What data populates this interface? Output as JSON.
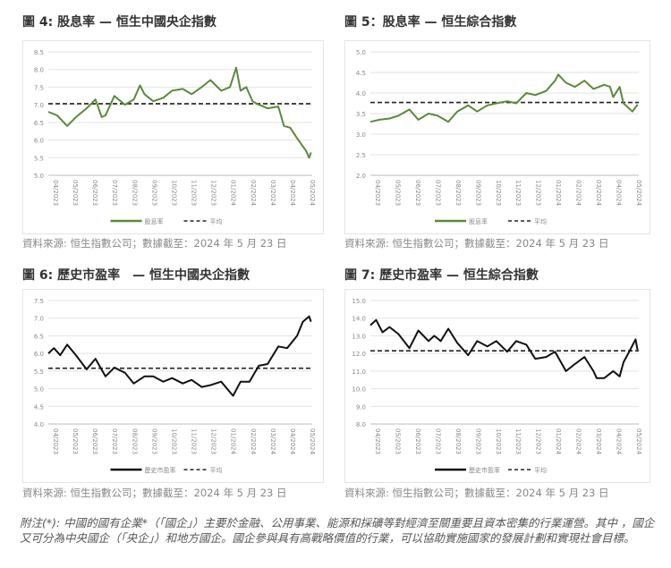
{
  "chart_data": [
    {
      "type": "line",
      "title": "圖 4: 股息率 — 恒生中國央企指數",
      "ylim": [
        5.0,
        8.5
      ],
      "yticks": [
        5.0,
        5.5,
        6.0,
        6.5,
        7.0,
        7.5,
        8.0,
        8.5
      ],
      "grid": true,
      "legend_placement": "bottom",
      "xtick_labels": [
        "04/2023",
        "05/2023",
        "06/2023",
        "07/2023",
        "08/2023",
        "09/2023",
        "10/2023",
        "11/2023",
        "12/2023",
        "01/2024",
        "02/2024",
        "03/2024",
        "04/2024",
        "05/2024"
      ],
      "series": [
        {
          "name": "股息率",
          "color": "#5a8a3a",
          "style": "solid",
          "x": [
            "2023-04-01",
            "2023-04-15",
            "2023-05-01",
            "2023-05-15",
            "2023-06-01",
            "2023-06-15",
            "2023-06-25",
            "2023-07-01",
            "2023-07-15",
            "2023-08-01",
            "2023-08-15",
            "2023-08-25",
            "2023-09-01",
            "2023-09-15",
            "2023-10-01",
            "2023-10-15",
            "2023-11-01",
            "2023-11-15",
            "2023-12-01",
            "2023-12-15",
            "2024-01-01",
            "2024-01-15",
            "2024-01-25",
            "2024-02-01",
            "2024-02-10",
            "2024-02-20",
            "2024-03-01",
            "2024-03-15",
            "2024-04-01",
            "2024-04-10",
            "2024-04-20",
            "2024-05-01",
            "2024-05-15",
            "2024-05-20",
            "2024-05-23"
          ],
          "y": [
            6.8,
            6.7,
            6.4,
            6.65,
            6.9,
            7.15,
            6.65,
            6.7,
            7.25,
            7.0,
            7.15,
            7.55,
            7.3,
            7.1,
            7.2,
            7.4,
            7.45,
            7.3,
            7.5,
            7.7,
            7.4,
            7.5,
            8.05,
            7.4,
            7.5,
            7.1,
            7.0,
            6.9,
            6.95,
            6.4,
            6.35,
            6.05,
            5.7,
            5.5,
            5.65
          ]
        },
        {
          "name": "平均",
          "color": "#222222",
          "style": "dashed",
          "value": 7.03
        }
      ],
      "source": "資料來源: 恒生指數公司；數據截至：2024 年 5 月 23 日"
    },
    {
      "type": "line",
      "title": "圖 5：股息率 — 恒生綜合指數",
      "ylim": [
        2.0,
        5.0
      ],
      "yticks": [
        2.0,
        2.5,
        3.0,
        3.5,
        4.0,
        4.5,
        5.0
      ],
      "grid": true,
      "legend_placement": "bottom",
      "xtick_labels": [
        "04/2023",
        "05/2023",
        "06/2023",
        "07/2023",
        "08/2023",
        "09/2023",
        "10/2023",
        "11/2023",
        "12/2023",
        "01/2024",
        "02/2024",
        "03/2024",
        "04/2024",
        "05/2024"
      ],
      "series": [
        {
          "name": "股息率",
          "color": "#5a8a3a",
          "style": "solid",
          "x": [
            "2023-04-01",
            "2023-04-15",
            "2023-05-01",
            "2023-05-15",
            "2023-06-01",
            "2023-06-15",
            "2023-07-01",
            "2023-07-15",
            "2023-08-01",
            "2023-08-15",
            "2023-09-01",
            "2023-09-15",
            "2023-10-01",
            "2023-10-15",
            "2023-11-01",
            "2023-11-15",
            "2023-12-01",
            "2023-12-15",
            "2024-01-01",
            "2024-01-15",
            "2024-01-20",
            "2024-02-01",
            "2024-02-15",
            "2024-03-01",
            "2024-03-15",
            "2024-04-01",
            "2024-04-10",
            "2024-04-15",
            "2024-04-25",
            "2024-05-01",
            "2024-05-15",
            "2024-05-23"
          ],
          "y": [
            3.3,
            3.35,
            3.38,
            3.45,
            3.6,
            3.35,
            3.5,
            3.45,
            3.3,
            3.55,
            3.7,
            3.55,
            3.7,
            3.75,
            3.8,
            3.75,
            4.0,
            3.95,
            4.05,
            4.3,
            4.45,
            4.25,
            4.15,
            4.3,
            4.1,
            4.2,
            4.15,
            3.9,
            4.15,
            3.75,
            3.55,
            3.72
          ]
        },
        {
          "name": "平均",
          "color": "#222222",
          "style": "dashed",
          "value": 3.77
        }
      ],
      "source": "資料來源: 恒生指數公司；數據截至：2024 年 5 月 23 日"
    },
    {
      "type": "line",
      "title": "圖 6: 歷史市盈率　— 恒生中國央企指數",
      "ylim": [
        4.0,
        7.5
      ],
      "yticks": [
        4.0,
        4.5,
        5.0,
        5.5,
        6.0,
        6.5,
        7.0,
        7.5
      ],
      "grid": true,
      "legend_placement": "bottom",
      "xtick_labels": [
        "04/2023",
        "05/2023",
        "06/2023",
        "07/2023",
        "08/2023",
        "09/2023",
        "10/2023",
        "11/2023",
        "12/2023",
        "01/2024",
        "02/2024",
        "03/2024",
        "04/2024",
        "05/2024"
      ],
      "series": [
        {
          "name": "歷史市盈率",
          "color": "#111111",
          "style": "solid",
          "x": [
            "2023-04-01",
            "2023-04-10",
            "2023-04-20",
            "2023-05-01",
            "2023-05-15",
            "2023-06-01",
            "2023-06-15",
            "2023-07-01",
            "2023-07-15",
            "2023-08-01",
            "2023-08-15",
            "2023-09-01",
            "2023-09-15",
            "2023-10-01",
            "2023-10-15",
            "2023-11-01",
            "2023-11-15",
            "2023-12-01",
            "2023-12-15",
            "2024-01-01",
            "2024-01-20",
            "2024-02-01",
            "2024-02-15",
            "2024-03-01",
            "2024-03-15",
            "2024-04-01",
            "2024-04-15",
            "2024-05-01",
            "2024-05-10",
            "2024-05-20",
            "2024-05-23"
          ],
          "y": [
            6.0,
            6.15,
            5.95,
            6.25,
            5.95,
            5.55,
            5.85,
            5.35,
            5.6,
            5.45,
            5.15,
            5.35,
            5.35,
            5.2,
            5.3,
            5.15,
            5.25,
            5.05,
            5.1,
            5.2,
            4.8,
            5.2,
            5.2,
            5.65,
            5.7,
            6.2,
            6.15,
            6.5,
            6.9,
            7.05,
            6.9
          ]
        },
        {
          "name": "平均",
          "color": "#222222",
          "style": "dashed",
          "value": 5.58
        }
      ],
      "source": "資料來源: 恒生指數公司；數據截至：2024 年 5 月 23 日"
    },
    {
      "type": "line",
      "title": "圖 7: 歷史市盈率 — 恒生綜合指數",
      "ylim": [
        8.0,
        15.0
      ],
      "yticks": [
        8.0,
        9.0,
        10.0,
        11.0,
        12.0,
        13.0,
        14.0,
        15.0
      ],
      "grid": true,
      "legend_placement": "bottom",
      "xtick_labels": [
        "04/2023",
        "05/2023",
        "06/2023",
        "07/2023",
        "08/2023",
        "09/2023",
        "10/2023",
        "11/2023",
        "12/2023",
        "01/2024",
        "02/2024",
        "03/2024",
        "04/2024",
        "05/2024"
      ],
      "series": [
        {
          "name": "歷史市盈率",
          "color": "#111111",
          "style": "solid",
          "x": [
            "2023-04-01",
            "2023-04-10",
            "2023-04-20",
            "2023-05-01",
            "2023-05-15",
            "2023-06-01",
            "2023-06-15",
            "2023-07-01",
            "2023-07-10",
            "2023-07-20",
            "2023-08-01",
            "2023-08-15",
            "2023-09-01",
            "2023-09-15",
            "2023-10-01",
            "2023-10-15",
            "2023-11-01",
            "2023-11-15",
            "2023-12-01",
            "2023-12-15",
            "2024-01-01",
            "2024-01-15",
            "2024-02-01",
            "2024-02-15",
            "2024-03-01",
            "2024-03-15",
            "2024-03-20",
            "2024-04-01",
            "2024-04-15",
            "2024-04-25",
            "2024-05-01",
            "2024-05-10",
            "2024-05-20",
            "2024-05-23"
          ],
          "y": [
            13.6,
            13.9,
            13.2,
            13.5,
            13.1,
            12.3,
            13.3,
            12.7,
            13.0,
            12.7,
            13.4,
            12.6,
            11.9,
            12.7,
            12.4,
            12.7,
            12.1,
            12.7,
            12.5,
            11.7,
            11.8,
            12.1,
            11.0,
            11.4,
            11.8,
            11.0,
            10.6,
            10.6,
            11.0,
            10.7,
            11.5,
            12.1,
            12.8,
            12.2
          ]
        },
        {
          "name": "平均",
          "color": "#222222",
          "style": "dashed",
          "value": 12.15
        }
      ],
      "source": "資料來源: 恒生指數公司；數據截至：2024 年 5 月 23 日"
    }
  ],
  "footnote": "附注(*): 中國的國有企業*（「國企」）主要於金融、公用事業、能源和採礦等對經濟至關重要且資本密集的行業運營。其中 ，國企又可分為中央國企（「央企」）和地方國企。國企參與具有高戰略價值的行業，可以協助實施國家的發展計劃和實現社會目標。"
}
